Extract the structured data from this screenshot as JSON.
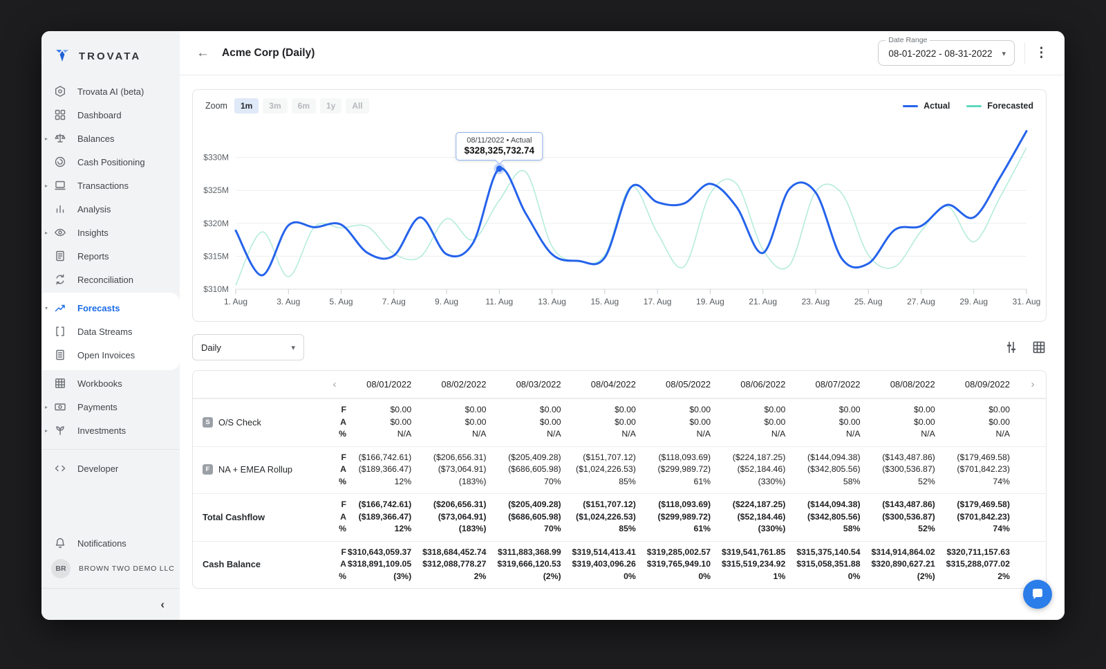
{
  "brand": {
    "name": "TROVATA"
  },
  "icons": {
    "back": "←",
    "kebab": "⋮",
    "select_caret": "▾",
    "field_caret": "▾",
    "caret_right": "▸",
    "caret_down": "▾",
    "prev": "‹",
    "next": "›",
    "collapse": "‹"
  },
  "sidebar": {
    "items": [
      {
        "label": "Trovata AI (beta)",
        "icon": "trovata-ai"
      },
      {
        "label": "Dashboard",
        "icon": "dashboard"
      },
      {
        "label": "Balances",
        "icon": "balances",
        "caret": "right"
      },
      {
        "label": "Cash Positioning",
        "icon": "cash-positioning"
      },
      {
        "label": "Transactions",
        "icon": "transactions",
        "caret": "right"
      },
      {
        "label": "Analysis",
        "icon": "analysis"
      },
      {
        "label": "Insights",
        "icon": "insights",
        "caret": "right"
      },
      {
        "label": "Reports",
        "icon": "reports"
      },
      {
        "label": "Reconciliation",
        "icon": "reconciliation"
      },
      {
        "label": "Forecasts",
        "icon": "forecasts",
        "caret": "down",
        "active": true,
        "group": true
      },
      {
        "label": "Data Streams",
        "icon": "data-streams",
        "group": true
      },
      {
        "label": "Open Invoices",
        "icon": "open-invoices",
        "group": true
      },
      {
        "label": "Workbooks",
        "icon": "workbooks"
      },
      {
        "label": "Payments",
        "icon": "payments",
        "caret": "right"
      },
      {
        "label": "Investments",
        "icon": "investments",
        "caret": "right"
      }
    ],
    "developer": {
      "label": "Developer",
      "icon": "developer"
    },
    "notifications": {
      "label": "Notifications",
      "icon": "bell"
    },
    "account": {
      "initials": "BR",
      "name": "BROWN TWO DEMO LLC"
    }
  },
  "header": {
    "title": "Acme Corp (Daily)",
    "date_range": {
      "label": "Date Range",
      "value": "08-01-2022 - 08-31-2022"
    }
  },
  "chart_ui": {
    "zoom_label": "Zoom",
    "zoom_options": [
      "1m",
      "3m",
      "6m",
      "1y",
      "All"
    ],
    "zoom_selected": "1m"
  },
  "chart_data": {
    "type": "line",
    "x": [
      1,
      2,
      3,
      4,
      5,
      6,
      7,
      8,
      9,
      10,
      11,
      12,
      13,
      14,
      15,
      16,
      17,
      18,
      19,
      20,
      21,
      22,
      23,
      24,
      25,
      26,
      27,
      28,
      29,
      30,
      31
    ],
    "x_tick_labels": [
      "1. Aug",
      "3. Aug",
      "5. Aug",
      "7. Aug",
      "9. Aug",
      "11. Aug",
      "13. Aug",
      "15. Aug",
      "17. Aug",
      "19. Aug",
      "21. Aug",
      "23. Aug",
      "25. Aug",
      "27. Aug",
      "29. Aug",
      "31. Aug"
    ],
    "y_ticks": [
      310,
      315,
      320,
      325,
      330
    ],
    "y_tick_labels": [
      "$310M",
      "$315M",
      "$320M",
      "$325M",
      "$330M"
    ],
    "ylim": [
      310,
      335
    ],
    "unit": "USD millions",
    "grid": "horizontal",
    "legend_position": "top-right",
    "series": [
      {
        "name": "Actual",
        "color": "#2563eb",
        "line_color": "#2563eb",
        "values": [
          318.9,
          312.1,
          319.7,
          319.4,
          319.8,
          315.5,
          315.1,
          320.9,
          315.3,
          317.0,
          328.3,
          321.5,
          315.3,
          314.3,
          314.8,
          325.5,
          323.2,
          323.0,
          326.0,
          322.5,
          315.5,
          325.2,
          324.7,
          314.6,
          313.9,
          319.0,
          319.6,
          322.8,
          320.9,
          327.0,
          334.0
        ]
      },
      {
        "name": "Forecasted",
        "color": "#5fd8bd",
        "line_color": "#b5ecdc",
        "values": [
          310.6,
          318.7,
          311.9,
          319.5,
          319.3,
          319.5,
          315.4,
          314.9,
          320.7,
          317.5,
          323.5,
          327.8,
          316.5,
          314.2,
          315.2,
          325.6,
          318.5,
          313.4,
          324.5,
          326.0,
          316.0,
          313.6,
          324.8,
          324.5,
          315.2,
          313.4,
          318.8,
          322.6,
          317.2,
          324.0,
          331.5
        ]
      }
    ],
    "tooltip": {
      "series": "Actual",
      "x": 11,
      "title": "08/11/2022 • Actual",
      "value": "$328,325,732.74"
    }
  },
  "table": {
    "period_selector": "Daily",
    "metric_keys": [
      "F",
      "A",
      "%"
    ],
    "dates": [
      "08/01/2022",
      "08/02/2022",
      "08/03/2022",
      "08/04/2022",
      "08/05/2022",
      "08/06/2022",
      "08/07/2022",
      "08/08/2022",
      "08/09/2022"
    ],
    "rows": [
      {
        "label": "O/S Check",
        "badge": "S",
        "bold": false,
        "F": [
          "$0.00",
          "$0.00",
          "$0.00",
          "$0.00",
          "$0.00",
          "$0.00",
          "$0.00",
          "$0.00",
          "$0.00"
        ],
        "A": [
          "$0.00",
          "$0.00",
          "$0.00",
          "$0.00",
          "$0.00",
          "$0.00",
          "$0.00",
          "$0.00",
          "$0.00"
        ],
        "pct": [
          "N/A",
          "N/A",
          "N/A",
          "N/A",
          "N/A",
          "N/A",
          "N/A",
          "N/A",
          "N/A"
        ]
      },
      {
        "label": "NA + EMEA Rollup",
        "badge": "F",
        "bold": false,
        "F": [
          "($166,742.61)",
          "($206,656.31)",
          "($205,409.28)",
          "($151,707.12)",
          "($118,093.69)",
          "($224,187.25)",
          "($144,094.38)",
          "($143,487.86)",
          "($179,469.58)"
        ],
        "A": [
          "($189,366.47)",
          "($73,064.91)",
          "($686,605.98)",
          "($1,024,226.53)",
          "($299,989.72)",
          "($52,184.46)",
          "($342,805.56)",
          "($300,536.87)",
          "($701,842.23)"
        ],
        "pct": [
          "12%",
          "(183%)",
          "70%",
          "85%",
          "61%",
          "(330%)",
          "58%",
          "52%",
          "74%"
        ]
      },
      {
        "label": "Total Cashflow",
        "badge": null,
        "bold": true,
        "F": [
          "($166,742.61)",
          "($206,656.31)",
          "($205,409.28)",
          "($151,707.12)",
          "($118,093.69)",
          "($224,187.25)",
          "($144,094.38)",
          "($143,487.86)",
          "($179,469.58)"
        ],
        "A": [
          "($189,366.47)",
          "($73,064.91)",
          "($686,605.98)",
          "($1,024,226.53)",
          "($299,989.72)",
          "($52,184.46)",
          "($342,805.56)",
          "($300,536.87)",
          "($701,842.23)"
        ],
        "pct": [
          "12%",
          "(183%)",
          "70%",
          "85%",
          "61%",
          "(330%)",
          "58%",
          "52%",
          "74%"
        ]
      },
      {
        "label": "Cash Balance",
        "badge": null,
        "bold": true,
        "F": [
          "$310,643,059.37",
          "$318,684,452.74",
          "$311,883,368.99",
          "$319,514,413.41",
          "$319,285,002.57",
          "$319,541,761.85",
          "$315,375,140.54",
          "$314,914,864.02",
          "$320,711,157.63"
        ],
        "A": [
          "$318,891,109.05",
          "$312,088,778.27",
          "$319,666,120.53",
          "$319,403,096.26",
          "$319,765,949.10",
          "$315,519,234.92",
          "$315,058,351.88",
          "$320,890,627.21",
          "$315,288,077.02"
        ],
        "pct": [
          "(3%)",
          "2%",
          "(2%)",
          "0%",
          "0%",
          "1%",
          "0%",
          "(2%)",
          "2%"
        ]
      }
    ]
  },
  "colors": {
    "accent_blue": "#2563eb",
    "forecast_teal": "#5fd8bd",
    "fab_blue": "#2b7de9",
    "sidebar_bg": "#f2f3f4"
  }
}
